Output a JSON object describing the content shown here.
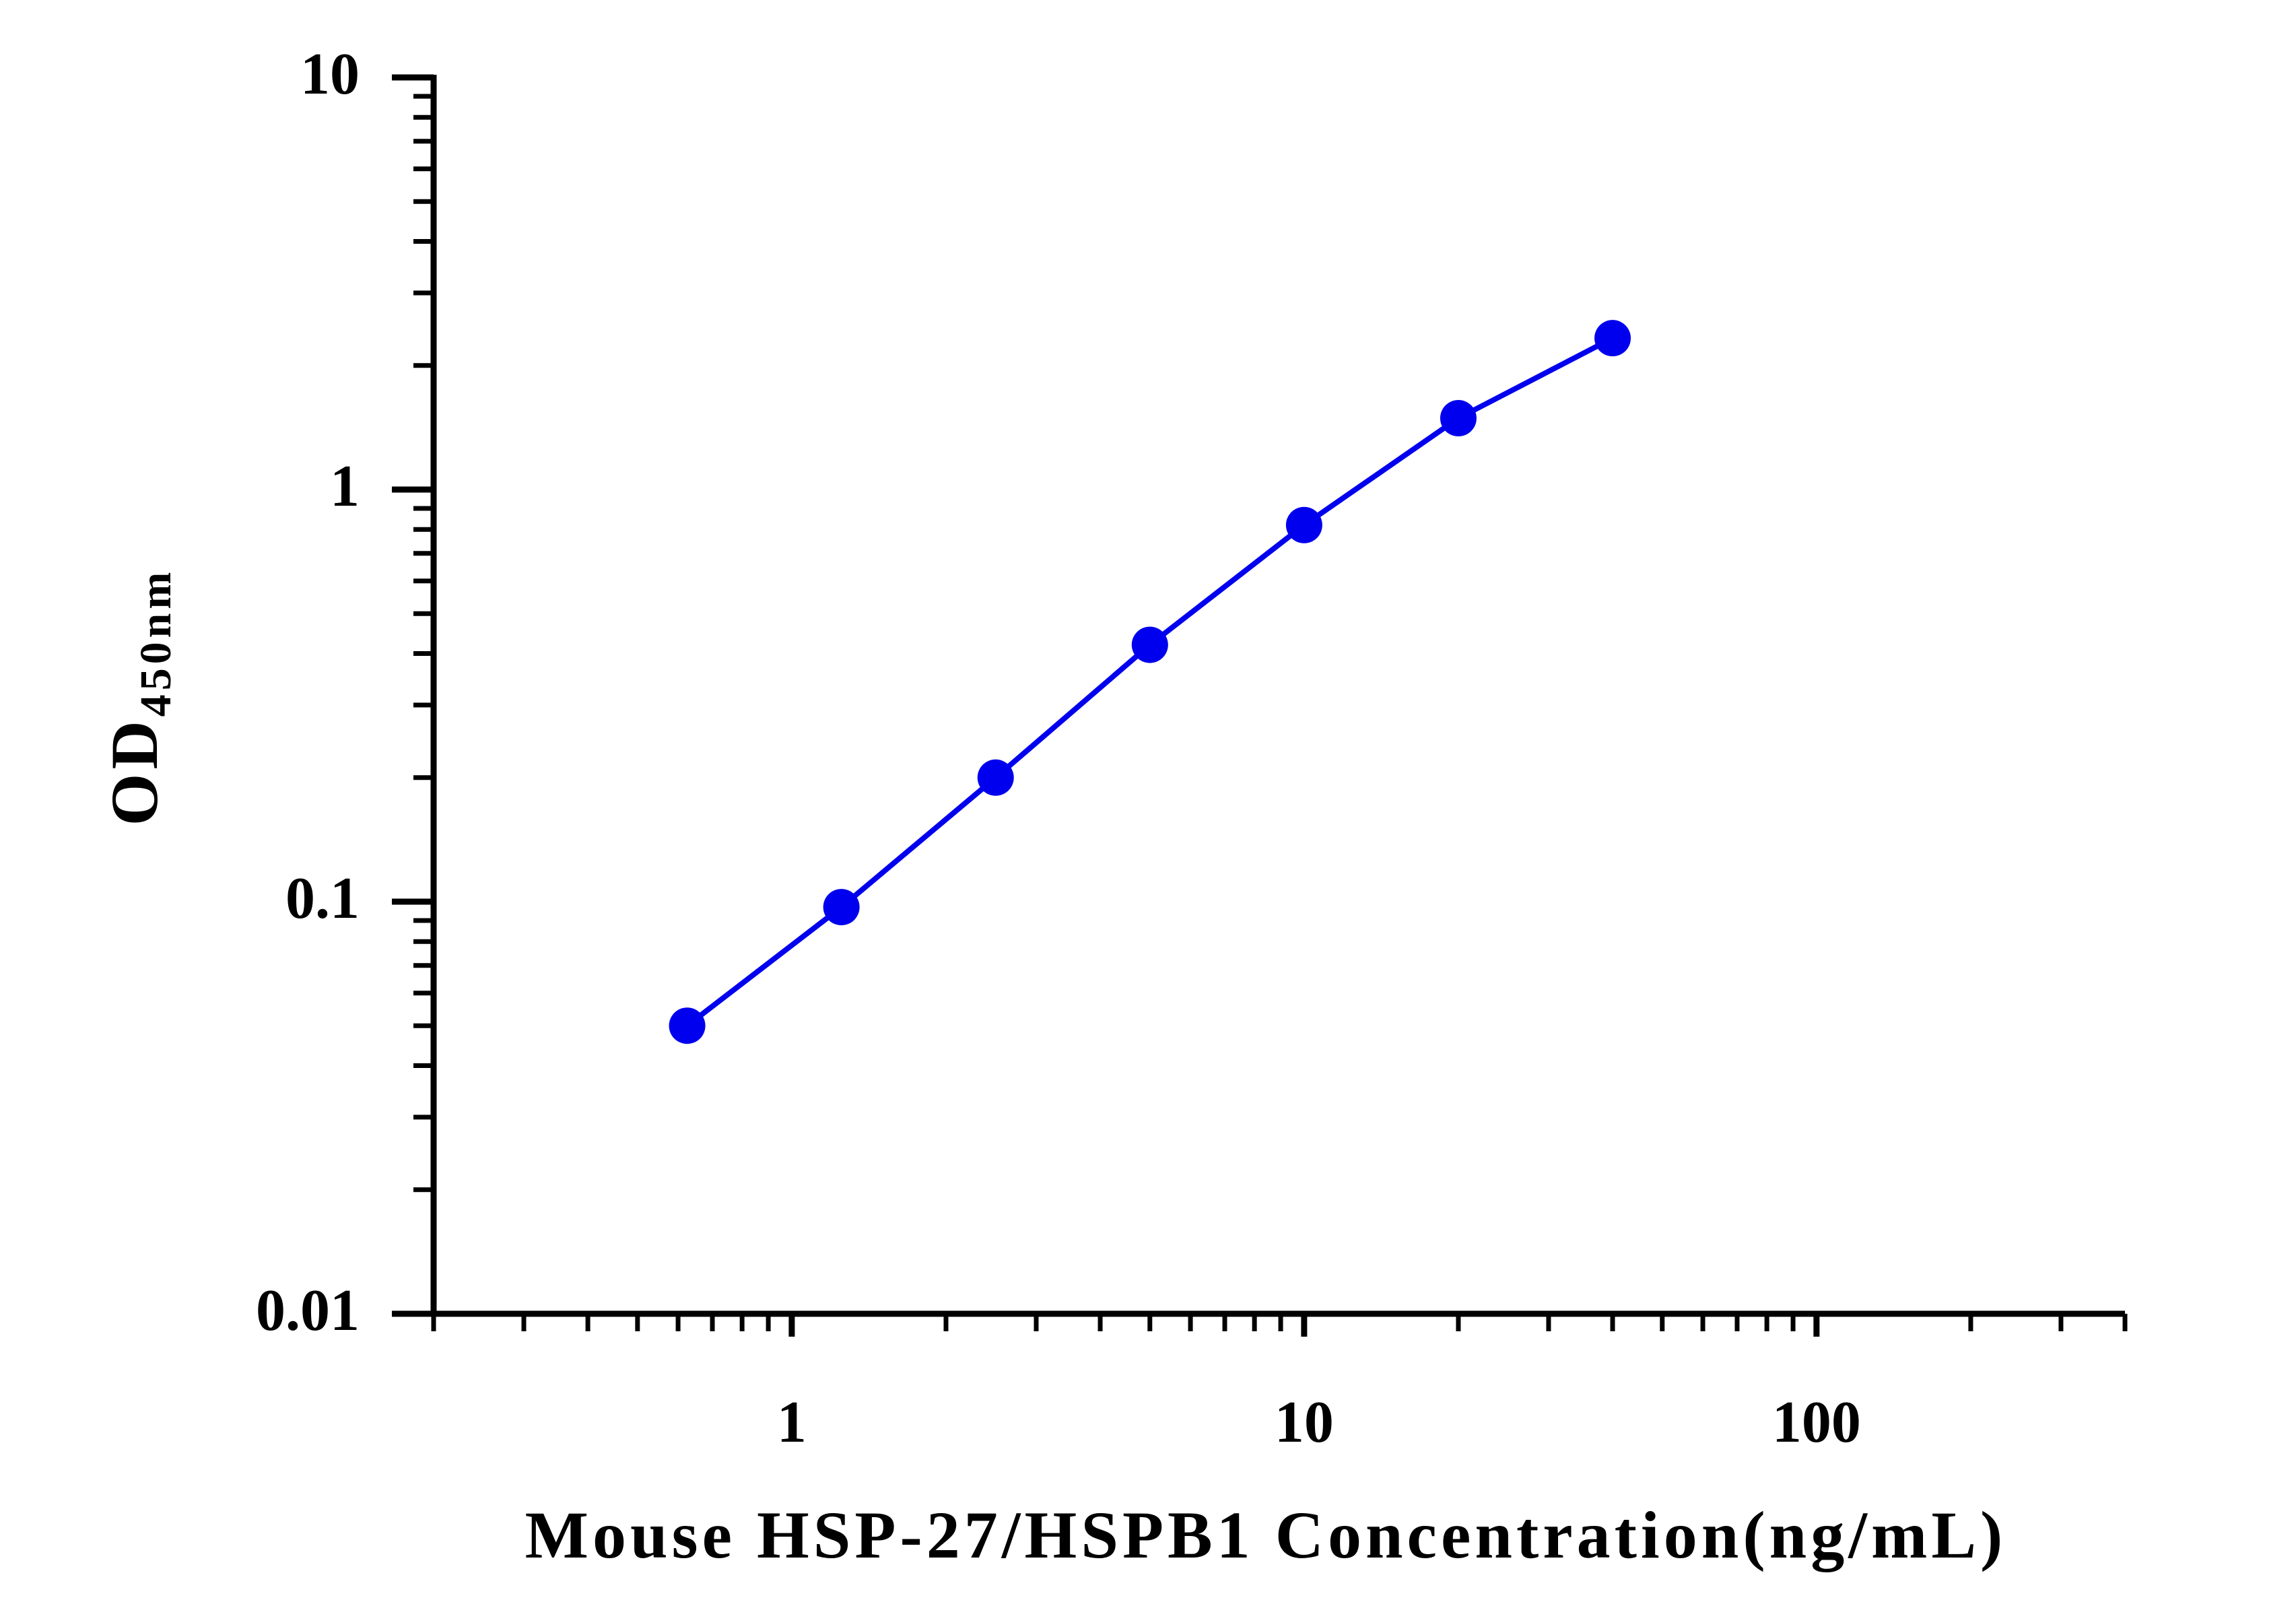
{
  "chart_data": {
    "type": "line",
    "x_label": "Mouse HSP-27/HSPB1 Concentration(ng/mL)",
    "y_label": "OD",
    "y_label_sub": "450nm",
    "x": [
      0.625,
      1.25,
      2.5,
      5,
      10,
      20,
      40
    ],
    "series": [
      {
        "color": "#0000ee",
        "values": [
          0.05,
          0.097,
          0.2,
          0.42,
          0.82,
          1.49,
          2.33
        ]
      }
    ],
    "xlim": [
      0.2,
      400
    ],
    "xticks": [
      1,
      10,
      100
    ],
    "ylim": [
      0.01,
      10
    ],
    "yticks": [
      0.01,
      0.1,
      1,
      10
    ],
    "x_log": true,
    "y_log": true,
    "minor_ticks": true,
    "markers": true
  }
}
